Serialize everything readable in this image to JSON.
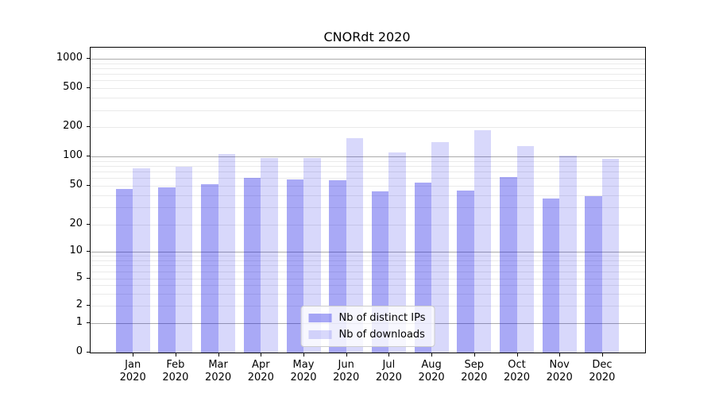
{
  "title": "CNORdt 2020",
  "colors": {
    "ips_bar": "rgba(10,10,230,0.35)",
    "downloads_bar": "rgba(10,10,230,0.16)",
    "major_grid": "#ababab",
    "minor_grid": "#eaeaea",
    "axis": "#000000",
    "legend_border": "#cccccc",
    "legend_bg": "rgba(255,255,255,0.8)"
  },
  "legend": {
    "items": [
      {
        "label": "Nb of distinct IPs",
        "series": "ips"
      },
      {
        "label": "Nb of downloads",
        "series": "downloads"
      }
    ]
  },
  "chart_data": {
    "type": "bar",
    "title": "CNORdt 2020",
    "categories": [
      "Jan 2020",
      "Feb 2020",
      "Mar 2020",
      "Apr 2020",
      "May 2020",
      "Jun 2020",
      "Jul 2020",
      "Aug 2020",
      "Sep 2020",
      "Oct 2020",
      "Nov 2020",
      "Dec 2020"
    ],
    "series": [
      {
        "name": "Nb of distinct IPs",
        "values": [
          46,
          48,
          52,
          60,
          58,
          57,
          44,
          54,
          45,
          61,
          37,
          39
        ]
      },
      {
        "name": "Nb of downloads",
        "values": [
          75,
          78,
          106,
          97,
          97,
          156,
          109,
          140,
          188,
          127,
          102,
          94
        ]
      }
    ],
    "xlabel": "",
    "ylabel": "",
    "yscale": "log-like",
    "yticks": [
      0,
      1,
      2,
      5,
      10,
      20,
      50,
      100,
      200,
      500,
      1000
    ],
    "ylim": [
      0,
      1000
    ],
    "grid": "horizontal major and minor gridlines",
    "legend_position": "lower center"
  }
}
